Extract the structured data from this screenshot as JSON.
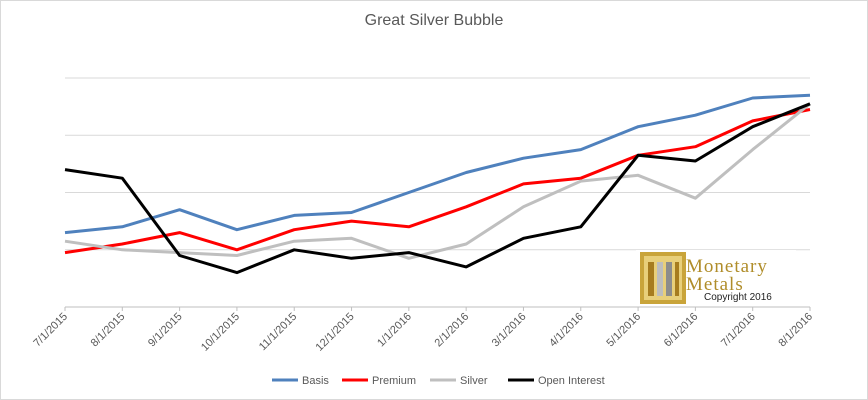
{
  "chart_data": {
    "type": "line",
    "title": "Great Silver  Bubble",
    "xlabel": "",
    "ylabel": "",
    "categories": [
      "7/1/2015",
      "8/1/2015",
      "9/1/2015",
      "10/1/2015",
      "11/1/2015",
      "12/1/2015",
      "1/1/2016",
      "2/1/2016",
      "3/1/2016",
      "4/1/2016",
      "5/1/2016",
      "6/1/2016",
      "7/1/2016",
      "8/1/2016"
    ],
    "grid": true,
    "legend_position": "bottom",
    "series": [
      {
        "name": "Basis",
        "color": "#4f81bd",
        "values": [
          130,
          140,
          170,
          135,
          160,
          165,
          200,
          235,
          260,
          275,
          315,
          335,
          365,
          370
        ]
      },
      {
        "name": "Premium",
        "color": "#ff0000",
        "values": [
          95,
          110,
          130,
          100,
          135,
          150,
          140,
          175,
          215,
          225,
          265,
          280,
          325,
          345
        ]
      },
      {
        "name": "Silver",
        "color": "#bfbfbf",
        "values": [
          115,
          100,
          95,
          90,
          115,
          120,
          85,
          110,
          175,
          220,
          230,
          190,
          275,
          355
        ]
      },
      {
        "name": "Open Interest",
        "color": "#000000",
        "values": [
          240,
          225,
          90,
          60,
          100,
          85,
          95,
          70,
          120,
          140,
          265,
          255,
          315,
          355
        ]
      }
    ]
  },
  "legend": {
    "items": [
      {
        "label": "Basis",
        "color": "#4f81bd"
      },
      {
        "label": "Premium",
        "color": "#ff0000"
      },
      {
        "label": "Silver",
        "color": "#bfbfbf"
      },
      {
        "label": "Open Interest",
        "color": "#000000"
      }
    ]
  },
  "logo": {
    "name_line1": "Monetary",
    "name_line2": "Metals",
    "copyright": "Copyright 2016"
  }
}
